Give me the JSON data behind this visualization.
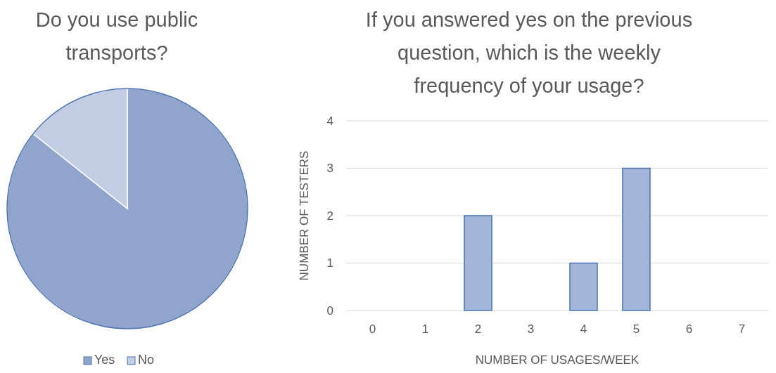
{
  "chart_data": [
    {
      "type": "pie",
      "title": "Do you use public transports?",
      "categories": [
        "Yes",
        "No"
      ],
      "values": [
        85.7,
        14.3
      ],
      "colors": [
        "#91a5cc",
        "#c2cde3"
      ],
      "legend": "bottom"
    },
    {
      "type": "bar",
      "title": "If you answered yes on the previous question, which is the weekly frequency of your usage?",
      "xlabel": "NUMBER OF USAGES/WEEK",
      "ylabel": "NUMBER OF TESTERS",
      "categories": [
        "0",
        "1",
        "2",
        "3",
        "4",
        "5",
        "6",
        "7"
      ],
      "values": [
        0,
        0,
        2,
        0,
        1,
        3,
        0,
        0
      ],
      "color": "#a3b6d9",
      "ylim": [
        0,
        4
      ],
      "yticks": [
        0,
        1,
        2,
        3,
        4
      ],
      "grid": "y"
    }
  ]
}
